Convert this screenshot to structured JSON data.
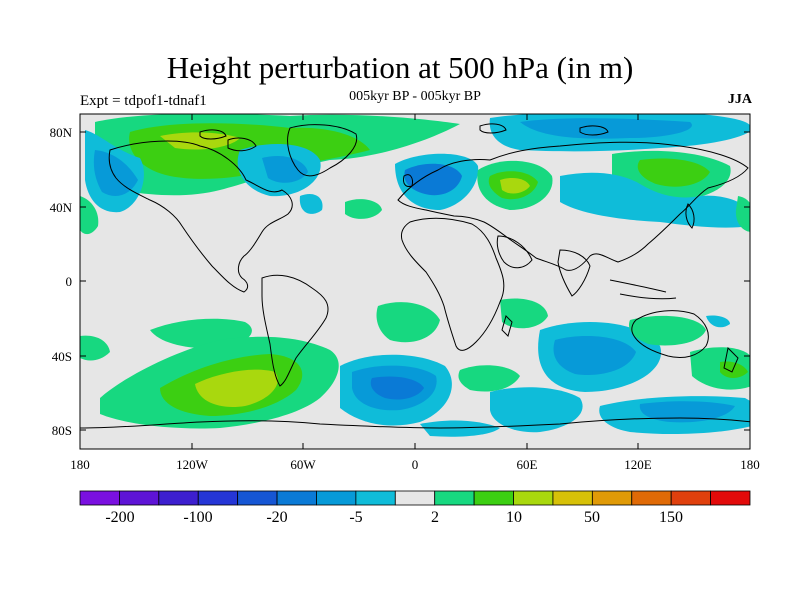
{
  "title": "Height perturbation at 500 hPa (in m)",
  "subtitle": "005kyr BP - 005kyr BP",
  "experiment": "Expt = tdpof1-tdnaf1",
  "season": "JJA",
  "map": {
    "projection": "cylindrical-equidistant",
    "lon_range": [
      -180,
      180
    ],
    "lat_range": [
      -90,
      90
    ],
    "background_color": "#e6e6e6",
    "x_ticks": [
      "180",
      "120W",
      "60W",
      "0",
      "60E",
      "120E",
      "180"
    ],
    "y_ticks": [
      "80N",
      "40N",
      "0",
      "40S",
      "80S"
    ]
  },
  "colorbar": {
    "colors": [
      "#7a10e0",
      "#5e14d6",
      "#3d1fcf",
      "#2536d6",
      "#1656d4",
      "#0a7ad6",
      "#079ad8",
      "#0fbcd9",
      "#e6e6e6",
      "#17d880",
      "#3ccf12",
      "#a9d80e",
      "#d7c108",
      "#e09a07",
      "#e06a06",
      "#e0400d",
      "#e20a0a"
    ],
    "labels": [
      "-200",
      "-100",
      "-20",
      "-5",
      "2",
      "10",
      "50",
      "150"
    ]
  },
  "anomaly_palette": {
    "cyan": "#0fbcd9",
    "blue": "#079ad8",
    "deep_blue": "#0a7ad6",
    "green": "#17d880",
    "bright_green": "#3ccf12",
    "yellow_green": "#a9d80e",
    "land_line": "#000000"
  }
}
